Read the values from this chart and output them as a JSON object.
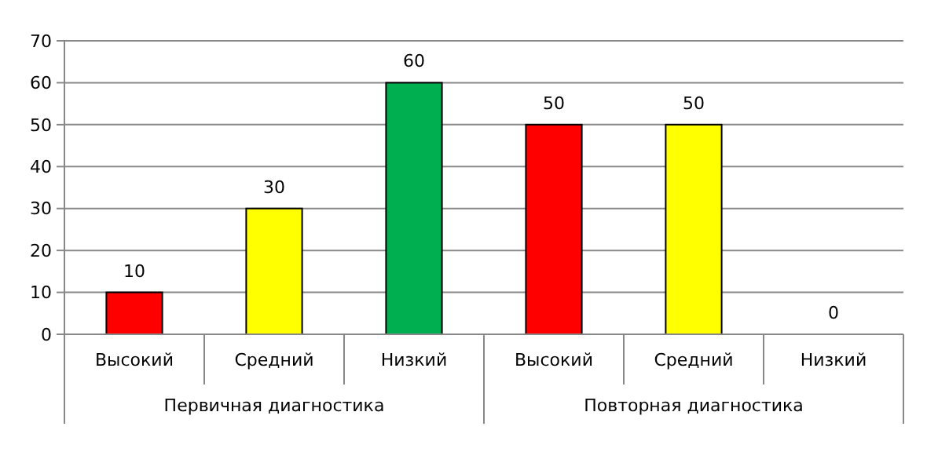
{
  "chart_data": {
    "type": "bar",
    "categories": [
      "Высокий",
      "Средний",
      "Низкий",
      "Высокий",
      "Средний",
      "Низкий"
    ],
    "values": [
      10,
      30,
      60,
      50,
      50,
      0
    ],
    "colors": [
      "#ff0000",
      "#ffff00",
      "#00b050",
      "#ff0000",
      "#ffff00",
      "#00b050"
    ],
    "ylim": [
      0,
      70
    ],
    "yticks": [
      0,
      10,
      20,
      30,
      40,
      50,
      60,
      70
    ],
    "grid": "y",
    "data_labels": true,
    "annotations": [
      "Первичная диагностика",
      "Повторная диагностика"
    ]
  }
}
